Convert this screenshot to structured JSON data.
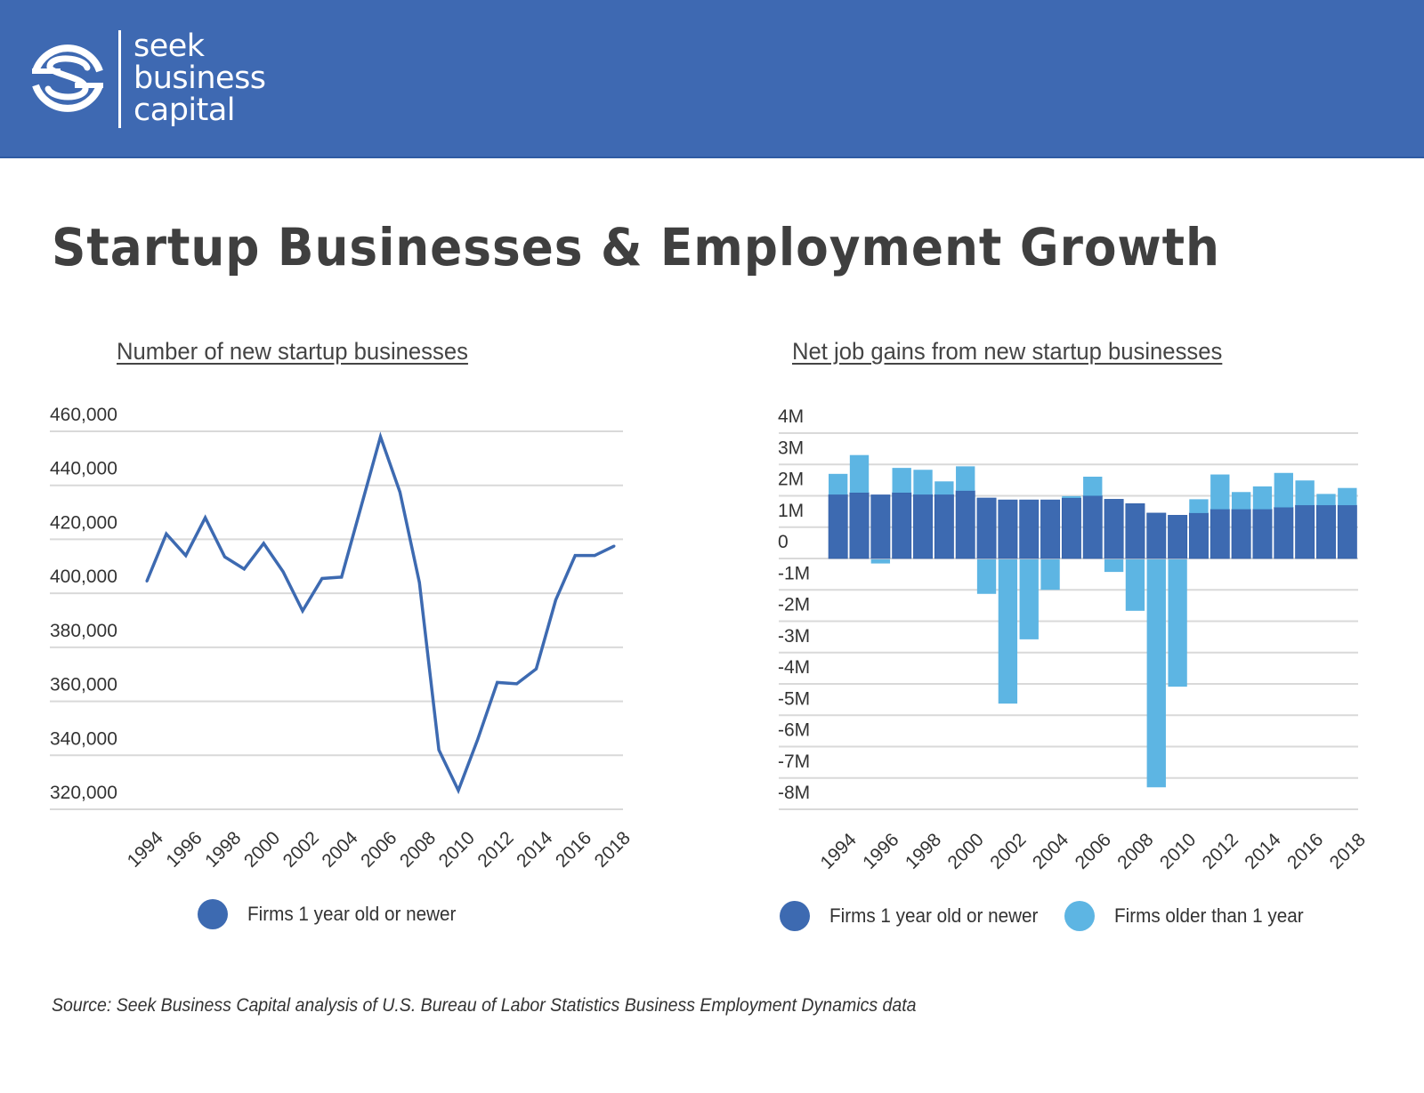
{
  "brand": {
    "logo_lines": [
      "seek",
      "business",
      "capital"
    ],
    "header_color": "#3e69b2"
  },
  "page": {
    "title": "Startup Businesses & Employment Growth",
    "source": "Source: Seek Business Capital analysis of U.S. Bureau of Labor Statistics  Business Employment Dynamics data"
  },
  "colors": {
    "new_firms": "#3d6ab1",
    "older_firms": "#5db5e3",
    "gridline": "#d9d9d9"
  },
  "chart_data": [
    {
      "type": "line",
      "title": "Number of new startup businesses",
      "xlabel": "",
      "ylabel": "",
      "x": [
        1994,
        1995,
        1996,
        1997,
        1998,
        1999,
        2000,
        2001,
        2002,
        2003,
        2004,
        2005,
        2006,
        2007,
        2008,
        2009,
        2010,
        2011,
        2012,
        2013,
        2014,
        2015,
        2016,
        2017,
        2018
      ],
      "x_tick_labels": [
        "1994",
        "1996",
        "1998",
        "2000",
        "2002",
        "2004",
        "2006",
        "2008",
        "2010",
        "2012",
        "2014",
        "2016",
        "2018"
      ],
      "y_tick_labels": [
        "460,000",
        "440,000",
        "420,000",
        "400,000",
        "380,000",
        "360,000",
        "340,000",
        "320,000"
      ],
      "y_ticks": [
        460000,
        440000,
        420000,
        400000,
        380000,
        360000,
        340000,
        320000
      ],
      "ylim": [
        320000,
        460000
      ],
      "grid": true,
      "legend_position": "bottom",
      "series": [
        {
          "name": "Firms 1 year old or newer",
          "color": "#3d6ab1",
          "values": [
            404500,
            422000,
            414000,
            428000,
            413500,
            409000,
            418500,
            408000,
            393500,
            405500,
            406000,
            432000,
            458000,
            437500,
            404000,
            342000,
            327000,
            346000,
            367000,
            366500,
            372000,
            397500,
            414000,
            414000,
            417500
          ]
        }
      ]
    },
    {
      "type": "bar",
      "stacked": true,
      "title": "Net job gains from new startup businesses",
      "xlabel": "",
      "ylabel": "",
      "categories": [
        "1994",
        "1995",
        "1996",
        "1997",
        "1998",
        "1999",
        "2000",
        "2001",
        "2002",
        "2003",
        "2004",
        "2005",
        "2006",
        "2007",
        "2008",
        "2009",
        "2010",
        "2011",
        "2012",
        "2013",
        "2014",
        "2015",
        "2016",
        "2017",
        "2018"
      ],
      "x_tick_labels": [
        "1994",
        "1996",
        "1998",
        "2000",
        "2002",
        "2004",
        "2006",
        "2008",
        "2010",
        "2012",
        "2014",
        "2016",
        "2018"
      ],
      "y_tick_labels": [
        "4M",
        "3M",
        "2M",
        "1M",
        "0",
        "-1M",
        "-2M",
        "-3M",
        "-4M",
        "-5M",
        "-6M",
        "-7M",
        "-8M"
      ],
      "y_ticks": [
        4,
        3,
        2,
        1,
        0,
        -1,
        -2,
        -3,
        -4,
        -5,
        -6,
        -7,
        -8
      ],
      "units": "millions of jobs",
      "ylim": [
        -8,
        4
      ],
      "grid": true,
      "legend_position": "bottom",
      "series": [
        {
          "name": "Firms 1 year old or newer",
          "color": "#3d6ab1",
          "values": [
            2.04,
            2.1,
            2.03,
            2.1,
            2.04,
            2.04,
            2.16,
            1.93,
            1.87,
            1.87,
            1.87,
            1.93,
            2.0,
            1.89,
            1.75,
            1.45,
            1.38,
            1.45,
            1.57,
            1.57,
            1.57,
            1.63,
            1.7,
            1.7,
            1.7
          ]
        },
        {
          "name": "Firms older than 1 year",
          "color": "#5db5e3",
          "values": [
            0.66,
            1.2,
            -0.13,
            0.79,
            0.79,
            0.42,
            0.78,
            -1.1,
            -4.6,
            -2.55,
            -0.97,
            0.06,
            0.61,
            -0.4,
            -1.64,
            -7.27,
            -4.06,
            0.44,
            1.11,
            0.55,
            0.73,
            1.1,
            0.79,
            0.36,
            0.55
          ]
        }
      ]
    }
  ]
}
